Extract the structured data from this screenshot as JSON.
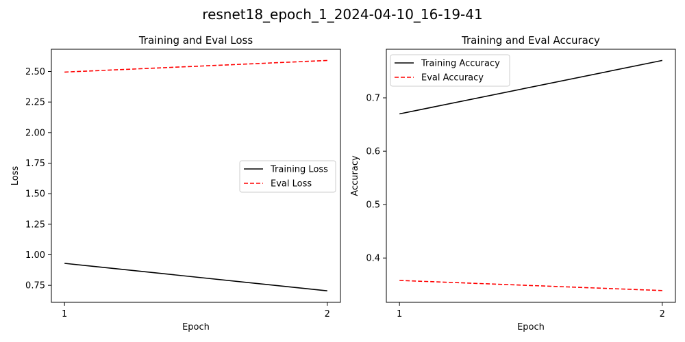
{
  "figure": {
    "title": "resnet18_epoch_1_2024-04-10_16-19-41"
  },
  "chart_data": [
    {
      "type": "line",
      "title": "Training and Eval Loss",
      "xlabel": "Epoch",
      "ylabel": "Loss",
      "x": [
        1,
        2
      ],
      "xticks": [
        1,
        2
      ],
      "xlim": [
        0.95,
        2.05
      ],
      "yticks": [
        0.75,
        1.0,
        1.25,
        1.5,
        1.75,
        2.0,
        2.25,
        2.5
      ],
      "ytick_labels": [
        "0.75",
        "1.00",
        "1.25",
        "1.50",
        "1.75",
        "2.00",
        "2.25",
        "2.50"
      ],
      "ylim": [
        0.611,
        2.682
      ],
      "grid": false,
      "legend_position": "center-right",
      "series": [
        {
          "name": "Training Loss",
          "values": [
            0.93,
            0.705
          ],
          "color": "#000000",
          "dash": "solid"
        },
        {
          "name": "Eval Loss",
          "values": [
            2.495,
            2.59
          ],
          "color": "#ff0000",
          "dash": "dashed"
        }
      ]
    },
    {
      "type": "line",
      "title": "Training and Eval Accuracy",
      "xlabel": "Epoch",
      "ylabel": "Accuracy",
      "x": [
        1,
        2
      ],
      "xticks": [
        1,
        2
      ],
      "xlim": [
        0.95,
        2.05
      ],
      "yticks": [
        0.4,
        0.5,
        0.6,
        0.7
      ],
      "ytick_labels": [
        "0.4",
        "0.5",
        "0.6",
        "0.7"
      ],
      "ylim": [
        0.317,
        0.791
      ],
      "grid": false,
      "legend_position": "top-left",
      "series": [
        {
          "name": "Training Accuracy",
          "values": [
            0.67,
            0.77
          ],
          "color": "#000000",
          "dash": "solid"
        },
        {
          "name": "Eval Accuracy",
          "values": [
            0.358,
            0.339
          ],
          "color": "#ff0000",
          "dash": "dashed"
        }
      ]
    }
  ]
}
